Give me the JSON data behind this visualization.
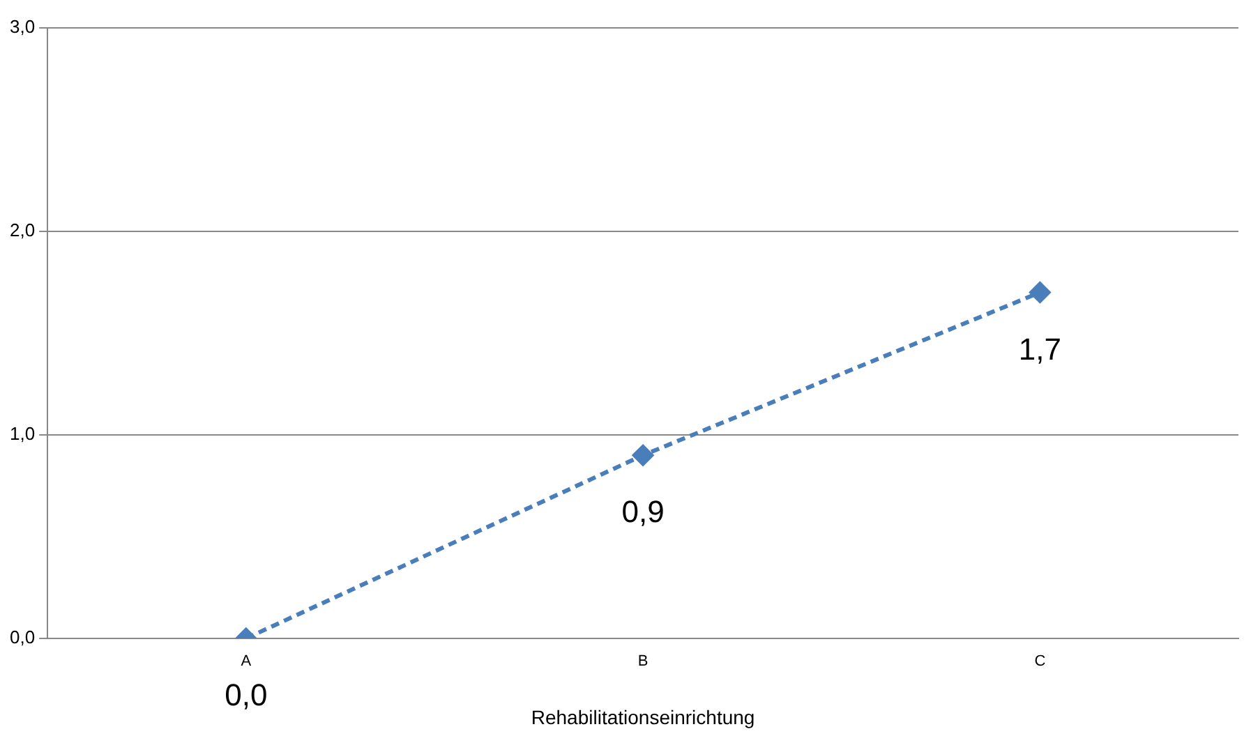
{
  "chart_data": {
    "type": "line",
    "xlabel": "Rehabilitationseinrichtung",
    "categories": [
      "A",
      "B",
      "C"
    ],
    "series": [
      {
        "color": "#4a7ebb",
        "values": [
          0.0,
          0.9,
          1.7
        ],
        "value_labels": [
          "0,0",
          "0,9",
          "1,7"
        ]
      }
    ],
    "ylim": [
      0,
      3
    ],
    "yticks": [
      {
        "value": 0,
        "label": "0,0"
      },
      {
        "value": 1,
        "label": "1,0"
      },
      {
        "value": 2,
        "label": "2,0"
      },
      {
        "value": 3,
        "label": "3,0"
      }
    ],
    "grid": "y",
    "legend": false,
    "marker": "diamond",
    "line_style": "dashed"
  }
}
